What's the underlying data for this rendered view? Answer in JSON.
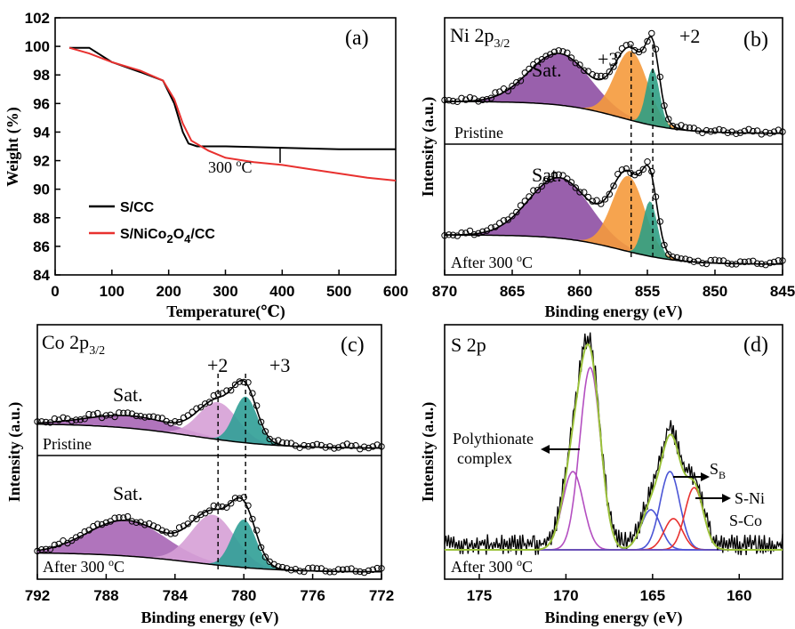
{
  "chart_data": [
    {
      "panel_label": "(a)",
      "type": "line",
      "xlabel": "Temperature(℃)",
      "ylabel": "Weight (%)",
      "xlim": [
        0,
        600
      ],
      "ylim": [
        84,
        102
      ],
      "x_ticks": [
        "0",
        "100",
        "200",
        "300",
        "400",
        "500",
        "600"
      ],
      "y_ticks": [
        "84",
        "86",
        "88",
        "90",
        "92",
        "94",
        "96",
        "98",
        "100",
        "102"
      ],
      "legend_position": "bottom-left",
      "annotation": "300 °C",
      "series": [
        {
          "name": "S/CC",
          "color": "#000000",
          "x": [
            25,
            60,
            100,
            150,
            190,
            210,
            225,
            235,
            250,
            300,
            400,
            500,
            600
          ],
          "y": [
            99.9,
            99.9,
            98.9,
            98.2,
            97.6,
            96.0,
            94.0,
            93.2,
            93.0,
            93.0,
            92.9,
            92.8,
            92.8
          ]
        },
        {
          "name": "S/NiCo2O4/CC",
          "color": "#e8312f",
          "x": [
            25,
            60,
            100,
            150,
            190,
            210,
            225,
            240,
            270,
            300,
            350,
            400,
            450,
            500,
            550,
            600
          ],
          "y": [
            99.9,
            99.5,
            98.9,
            98.3,
            97.6,
            96.3,
            94.6,
            93.4,
            92.7,
            92.2,
            91.9,
            91.7,
            91.4,
            91.1,
            90.8,
            90.6
          ]
        }
      ]
    },
    {
      "panel_label": "(b)",
      "type": "line",
      "title": "Ni 2p3/2",
      "xlabel": "Binding energy (eV)",
      "ylabel": "Intensity (a.u.)",
      "xlim": [
        870,
        845
      ],
      "x_ticks": [
        "870",
        "865",
        "860",
        "855",
        "850",
        "845"
      ],
      "labels": [
        "Sat.",
        "+3",
        "+2",
        "Pristine",
        "Sat.",
        "After 300 °C"
      ],
      "peak_centers_eV": {
        "satellite": 861.5,
        "Ni3+": 856.2,
        "Ni2+": 854.5
      },
      "fill_colors": {
        "satellite": "#8e4fa3",
        "Ni3+": "#f59a3c",
        "Ni2+": "#2f9e84"
      }
    },
    {
      "panel_label": "(c)",
      "type": "line",
      "title": "Co 2p3/2",
      "xlabel": "Binding energy (eV)",
      "ylabel": "Intensity (a.u.)",
      "xlim": [
        792,
        772
      ],
      "x_ticks": [
        "792",
        "788",
        "784",
        "780",
        "776",
        "772"
      ],
      "labels": [
        "Sat.",
        "+2",
        "+3",
        "Pristine",
        "Sat.",
        "After 300 °C"
      ],
      "peak_centers_eV": {
        "satellite": 786.5,
        "Co2+": 781.5,
        "Co3+": 779.9
      },
      "fill_colors": {
        "satellite": "#a765b5",
        "Co2+": "#d6a0d6",
        "Co3+": "#2f9e96"
      }
    },
    {
      "panel_label": "(d)",
      "type": "line",
      "title": "S 2p",
      "xlabel": "Binding energy (eV)",
      "ylabel": "Intensity (a.u.)",
      "xlim": [
        177,
        157.5
      ],
      "x_ticks": [
        "175",
        "170",
        "165",
        "160"
      ],
      "labels": [
        "Polythionate complex",
        "SB",
        "S-Ni S-Co",
        "After 300 °C"
      ],
      "peak_centers_eV": {
        "polythionate_1": 169.6,
        "polythionate_2": 168.5,
        "SB_1": 165.1,
        "SB_2": 164.0,
        "S-Ni/S-Co_1": 163.9,
        "S-Ni/S-Co_2": 162.5
      },
      "line_colors": {
        "polythionate": "#b44fc1",
        "SB": "#4b55d6",
        "S-Ni/S-Co": "#e8312f",
        "envelope": "#9bc23a"
      }
    }
  ],
  "panels": {
    "a": {
      "label": "(a)",
      "xlabel": "Temperature(℃)",
      "ylabel": "Weight (%)",
      "legend": [
        "S/CC",
        "S/NiCo",
        "2",
        "O",
        "4",
        "/CC"
      ],
      "annotation": "300 ",
      "annotation_sup": "o",
      "annotation_unit": "C"
    },
    "b": {
      "label": "(b)",
      "title_main": "Ni 2p",
      "title_sub": "3/2",
      "sat1": "Sat.",
      "p3": "+3",
      "p2": "+2",
      "pristine": "Pristine",
      "sat2": "Sat.",
      "after": "After 300 ",
      "after_sup": "o",
      "after_unit": "C",
      "xlabel": "Binding energy (eV)",
      "ylabel": "Intensity (a.u.)"
    },
    "c": {
      "label": "(c)",
      "title_main": "Co 2p",
      "title_sub": "3/2",
      "sat1": "Sat.",
      "p2": "+2",
      "p3": "+3",
      "pristine": "Pristine",
      "sat2": "Sat.",
      "after": "After 300 ",
      "after_sup": "o",
      "after_unit": "C",
      "xlabel": "Binding energy (eV)",
      "ylabel": "Intensity (a.u.)"
    },
    "d": {
      "label": "(d)",
      "title": "S 2p",
      "poly1": "Polythionate",
      "poly2": "complex",
      "sb_main": "S",
      "sb_sub": "B",
      "sni": "S-Ni",
      "sco": "S-Co",
      "after": "After 300 ",
      "after_sup": "o",
      "after_unit": "C",
      "xlabel": "Binding energy (eV)",
      "ylabel": "Intensity (a.u.)"
    }
  }
}
